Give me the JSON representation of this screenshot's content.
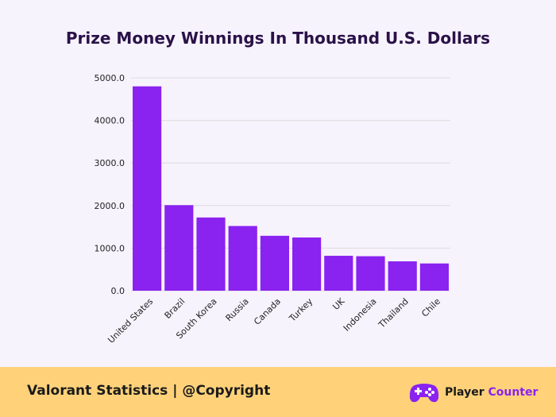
{
  "chart_data": {
    "type": "bar",
    "title": "Prize Money Winnings In Thousand U.S. Dollars",
    "xlabel": "",
    "ylabel": "",
    "categories": [
      "United States",
      "Brazil",
      "South Korea",
      "Russia",
      "Canada",
      "Turkey",
      "UK",
      "Indonesia",
      "Thailand",
      "Chile"
    ],
    "values": [
      4800,
      2010,
      1720,
      1520,
      1290,
      1250,
      820,
      810,
      690,
      640
    ],
    "ylim": [
      0,
      5000
    ],
    "yticks": [
      "0.0",
      "1000.0",
      "2000.0",
      "3000.0",
      "4000.0",
      "5000.0"
    ],
    "grid": true,
    "bar_color": "#8a22f0",
    "grid_color": "#dcdcdc"
  },
  "footer": {
    "left_text": "Valorant Statistics |  @Copyright",
    "brand_name_part1": "Player ",
    "brand_name_part2": "Counter",
    "brand_icon": "gamepad-icon",
    "background_color": "#ffd27a",
    "accent_color": "#8a22f0"
  }
}
